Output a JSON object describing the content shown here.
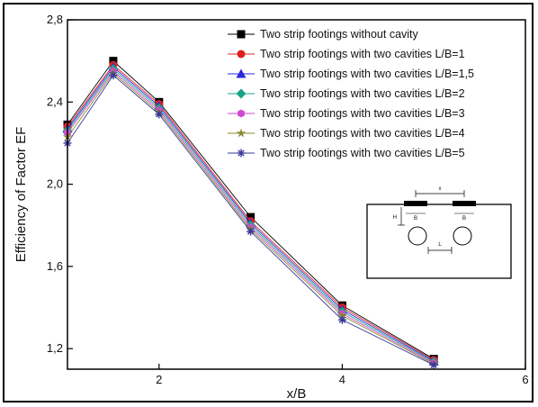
{
  "chart_data": {
    "type": "line",
    "xlabel": "x/B",
    "ylabel": "Efficiency of Factor EF",
    "xlim": [
      1,
      6
    ],
    "ylim": [
      1.1,
      2.8
    ],
    "xticks": [
      {
        "value": 2,
        "label": "2"
      },
      {
        "value": 4,
        "label": "4"
      },
      {
        "value": 6,
        "label": "6"
      }
    ],
    "yticks": [
      {
        "value": 1.2,
        "label": "1,2"
      },
      {
        "value": 1.6,
        "label": "1,6"
      },
      {
        "value": 2.0,
        "label": "2,0"
      },
      {
        "value": 2.4,
        "label": "2,4"
      },
      {
        "value": 2.8,
        "label": "2,8"
      }
    ],
    "x": [
      1,
      1.5,
      2,
      3,
      4,
      5
    ],
    "series": [
      {
        "name": "Two strip footings without cavity",
        "values": [
          2.29,
          2.6,
          2.4,
          1.84,
          1.41,
          1.15
        ],
        "color": "#000000",
        "marker": "square"
      },
      {
        "name": "Two strip footings with two cavities L/B=1",
        "values": [
          2.28,
          2.58,
          2.39,
          1.82,
          1.4,
          1.145
        ],
        "color": "#e02020",
        "marker": "circle"
      },
      {
        "name": "Two strip footings with two cavities L/B=1,5",
        "values": [
          2.27,
          2.57,
          2.38,
          1.81,
          1.39,
          1.14
        ],
        "color": "#2a2ad8",
        "marker": "triangle"
      },
      {
        "name": "Two strip footings with two cavities L/B=2",
        "values": [
          2.26,
          2.56,
          2.37,
          1.8,
          1.38,
          1.135
        ],
        "color": "#17a38a",
        "marker": "diamond"
      },
      {
        "name": "Two strip footings with two cavities L/B=3",
        "values": [
          2.25,
          2.55,
          2.36,
          1.79,
          1.37,
          1.13
        ],
        "color": "#d04ad0",
        "marker": "hexagon"
      },
      {
        "name": "Two strip footings with two cavities L/B=4",
        "values": [
          2.23,
          2.54,
          2.35,
          1.78,
          1.36,
          1.125
        ],
        "color": "#8a8a30",
        "marker": "star"
      },
      {
        "name": "Two strip footings with two cavities L/B=5",
        "values": [
          2.2,
          2.53,
          2.34,
          1.77,
          1.34,
          1.12
        ],
        "color": "#3a3a9a",
        "marker": "asterisk"
      }
    ],
    "legend_position": "top-right",
    "inset": {
      "labels": [
        "x",
        "H",
        "B",
        "B",
        "L"
      ]
    }
  }
}
